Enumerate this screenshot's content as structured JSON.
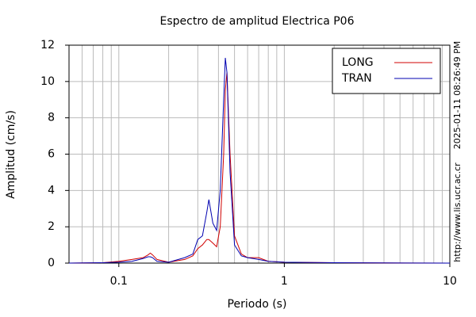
{
  "chart_data": {
    "type": "line",
    "title": "Espectro de amplitud Electrica P06",
    "xlabel": "Periodo (s)",
    "ylabel": "Amplitud (cm/s)",
    "xscale": "log",
    "grid": true,
    "legend": "upper right",
    "annotations": [
      "2025-01-11 08:26:49 PM",
      "http://www.lis.ucr.ac.cr"
    ],
    "xlim": [
      0.05,
      10
    ],
    "ylim": [
      0,
      12
    ],
    "xticks": [
      0.1,
      1,
      10
    ],
    "xminorticks": [
      0.06,
      0.07,
      0.08,
      0.09,
      0.2,
      0.3,
      0.4,
      0.5,
      0.6,
      0.7,
      0.8,
      0.9,
      2,
      3,
      4,
      5,
      6,
      7,
      8,
      9
    ],
    "yticks": [
      0,
      2,
      4,
      6,
      8,
      10,
      12
    ],
    "x": [
      0.05,
      0.08,
      0.1,
      0.12,
      0.14,
      0.15,
      0.155,
      0.16,
      0.17,
      0.2,
      0.25,
      0.28,
      0.3,
      0.32,
      0.34,
      0.35,
      0.37,
      0.39,
      0.41,
      0.43,
      0.44,
      0.45,
      0.47,
      0.5,
      0.55,
      0.6,
      0.7,
      0.8,
      1,
      2,
      10
    ],
    "series": [
      {
        "name": "LONG",
        "color": "#d00000",
        "values": [
          0,
          0.02,
          0.1,
          0.2,
          0.3,
          0.45,
          0.55,
          0.45,
          0.2,
          0.05,
          0.2,
          0.4,
          0.8,
          1.0,
          1.3,
          1.3,
          1.1,
          0.9,
          2,
          6,
          9.5,
          10.5,
          6,
          1.5,
          0.5,
          0.3,
          0.3,
          0.1,
          0.05,
          0.02,
          0
        ]
      },
      {
        "name": "TRAN",
        "color": "#0000b0",
        "values": [
          0,
          0.02,
          0.05,
          0.1,
          0.25,
          0.35,
          0.35,
          0.3,
          0.1,
          0.05,
          0.3,
          0.5,
          1.3,
          1.5,
          2.8,
          3.5,
          2.2,
          1.8,
          4,
          9,
          11.3,
          10.5,
          5,
          1,
          0.4,
          0.3,
          0.2,
          0.1,
          0.05,
          0.02,
          0
        ]
      }
    ]
  }
}
